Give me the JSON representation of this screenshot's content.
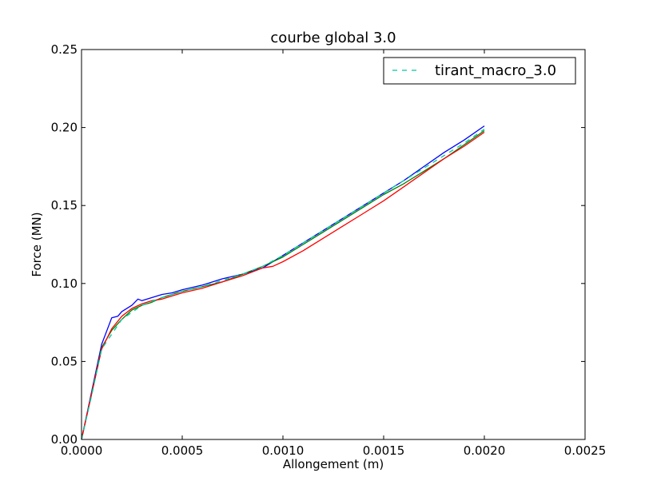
{
  "chart_data": {
    "type": "line",
    "title": "courbe global 3.0",
    "xlabel": "Allongement (m)",
    "ylabel": "Force (MN)",
    "xlim": [
      0,
      0.0025
    ],
    "ylim": [
      0,
      0.25
    ],
    "xticks": [
      "0.0000",
      "0.0005",
      "0.0010",
      "0.0015",
      "0.0020",
      "0.0025"
    ],
    "yticks": [
      "0.00",
      "0.05",
      "0.10",
      "0.15",
      "0.20",
      "0.25"
    ],
    "grid": false,
    "legend": {
      "position": "top-right",
      "entries": [
        "tirant_macro_3.0"
      ]
    },
    "series": [
      {
        "color": "#0000ff",
        "style": "solid",
        "x": [
          0,
          0.0001,
          0.00015,
          0.00018,
          0.0002,
          0.00025,
          0.00028,
          0.0003,
          0.00035,
          0.0004,
          0.00045,
          0.0005,
          0.0006,
          0.0007,
          0.0008,
          0.0009,
          0.001,
          0.0011,
          0.0012,
          0.0013,
          0.0014,
          0.0015,
          0.0016,
          0.0017,
          0.0018,
          0.0019,
          0.002
        ],
        "y": [
          0,
          0.061,
          0.078,
          0.079,
          0.082,
          0.086,
          0.09,
          0.089,
          0.091,
          0.093,
          0.094,
          0.096,
          0.099,
          0.103,
          0.106,
          0.11,
          0.118,
          0.126,
          0.134,
          0.142,
          0.15,
          0.158,
          0.166,
          0.175,
          0.184,
          0.192,
          0.201
        ]
      },
      {
        "color": "#008000",
        "style": "solid",
        "x": [
          0,
          0.0001,
          0.00015,
          0.0002,
          0.00025,
          0.0003,
          0.00035,
          0.0004,
          0.00045,
          0.0005,
          0.0006,
          0.0007,
          0.0008,
          0.0009,
          0.001,
          0.0011,
          0.0012,
          0.0013,
          0.0014,
          0.0015,
          0.0016,
          0.0017,
          0.0018,
          0.0019,
          0.002
        ],
        "y": [
          0,
          0.059,
          0.07,
          0.077,
          0.083,
          0.086,
          0.088,
          0.091,
          0.093,
          0.095,
          0.098,
          0.101,
          0.106,
          0.111,
          0.117,
          0.125,
          0.133,
          0.141,
          0.149,
          0.157,
          0.164,
          0.172,
          0.18,
          0.189,
          0.198
        ]
      },
      {
        "color": "#ff0000",
        "style": "solid",
        "x": [
          0,
          0.0001,
          0.00015,
          0.0002,
          0.00025,
          0.0003,
          0.00035,
          0.0004,
          0.00045,
          0.0005,
          0.0006,
          0.0007,
          0.0008,
          0.0009,
          0.00095,
          0.001,
          0.0011,
          0.0012,
          0.0013,
          0.0014,
          0.0015,
          0.0016,
          0.0017,
          0.0018,
          0.0019,
          0.002
        ],
        "y": [
          0,
          0.058,
          0.071,
          0.079,
          0.084,
          0.087,
          0.089,
          0.09,
          0.092,
          0.094,
          0.097,
          0.101,
          0.105,
          0.11,
          0.111,
          0.114,
          0.121,
          0.129,
          0.137,
          0.145,
          0.153,
          0.162,
          0.171,
          0.18,
          0.188,
          0.197
        ]
      },
      {
        "name": "tirant_macro_3.0",
        "color": "#00c8a0",
        "style": "dashed",
        "x": [
          0,
          5e-05,
          0.0001,
          0.0002,
          0.0003,
          0.0004,
          0.0005,
          0.0006,
          0.0007,
          0.0008,
          0.0009,
          0.001,
          0.0011,
          0.0012,
          0.0013,
          0.0014,
          0.0015,
          0.0016,
          0.0017,
          0.0018,
          0.0019,
          0.002
        ],
        "y": [
          0,
          0.028,
          0.058,
          0.077,
          0.086,
          0.091,
          0.095,
          0.098,
          0.102,
          0.106,
          0.111,
          0.118,
          0.126,
          0.134,
          0.142,
          0.15,
          0.158,
          0.166,
          0.174,
          0.182,
          0.19,
          0.199
        ]
      }
    ]
  }
}
